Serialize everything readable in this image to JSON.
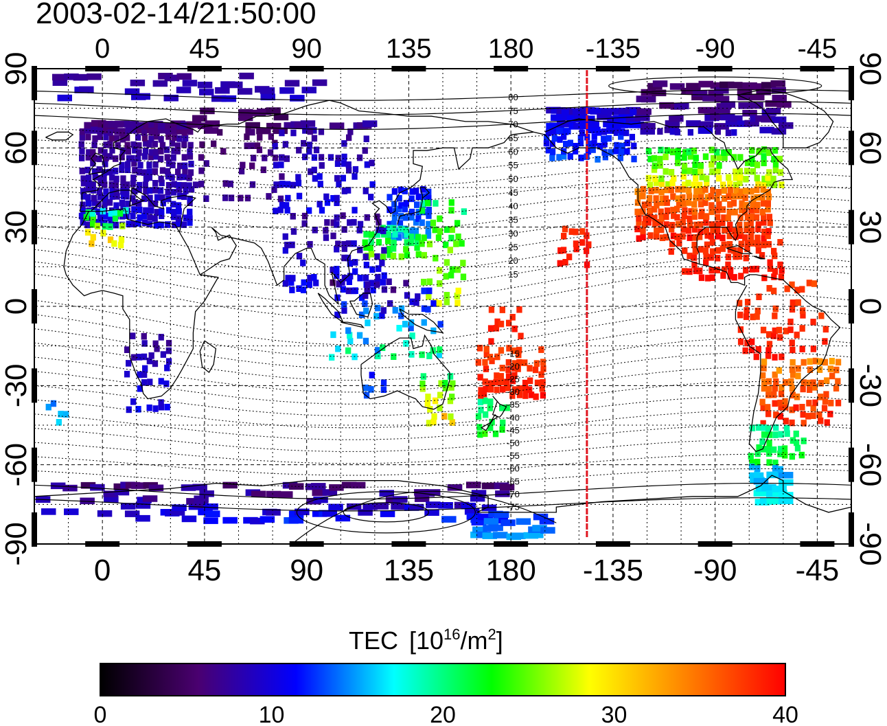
{
  "timestamp": "2003-02-14/21:50:00",
  "map": {
    "lon_range": [
      -30,
      330
    ],
    "lat_range": [
      -90,
      90
    ],
    "lon_tick_values": [
      0,
      45,
      90,
      135,
      180,
      225,
      270,
      315
    ],
    "lon_tick_labels": [
      "0",
      "45",
      "90",
      "135",
      "180",
      "-135",
      "-90",
      "-45"
    ],
    "lat_tick_values": [
      90,
      60,
      30,
      0,
      -30,
      -60,
      -90
    ],
    "lat_tick_labels": [
      "90",
      "60",
      "30",
      "0",
      "-30",
      "-60",
      "-90"
    ],
    "grid_lon_step": 15,
    "grid_lat_step": 15,
    "grid": true,
    "terminator_lon": 213.5,
    "terminator_color": "#e0141e",
    "contour_labels_north": [
      "80",
      "75",
      "70",
      "65",
      "60",
      "55",
      "50",
      "45",
      "40",
      "35",
      "30",
      "25",
      "20",
      "15"
    ],
    "contour_labels_south": [
      "-15",
      "-20",
      "-25",
      "-30",
      "-35",
      "-40",
      "-45",
      "-50",
      "-55",
      "-60",
      "-65",
      "-70",
      "-75"
    ]
  },
  "colorbar": {
    "title": "TEC",
    "unit_prefix": "[10",
    "unit_exp": "16",
    "unit_mid": "/m",
    "unit_exp2": "2",
    "unit_suffix": "]",
    "min": 0,
    "max": 40,
    "tick_values": [
      0,
      10,
      20,
      30,
      40
    ],
    "tick_labels": [
      "0",
      "10",
      "20",
      "30",
      "40"
    ],
    "colormap": [
      "#000000",
      "#4a0070",
      "#0000ff",
      "#00ffff",
      "#00ff00",
      "#ffff00",
      "#ff8000",
      "#ff0000"
    ]
  },
  "chart_data": {
    "type": "heatmap",
    "title": "2003-02-14/21:50:00",
    "value_label": "TEC [10^16/m^2]",
    "vmin": 0,
    "vmax": 40,
    "regions": [
      {
        "lon": [
          -10,
          40
        ],
        "lat": [
          30,
          70
        ],
        "v0": 5,
        "v1": 11,
        "density": 0.9
      },
      {
        "lon": [
          -8,
          10
        ],
        "lat": [
          22,
          35
        ],
        "v0": 16,
        "v1": 34,
        "density": 0.5
      },
      {
        "lon": [
          40,
          80
        ],
        "lat": [
          40,
          75
        ],
        "v0": 4,
        "v1": 8,
        "density": 0.25
      },
      {
        "lon": [
          75,
          120
        ],
        "lat": [
          35,
          70
        ],
        "v0": 6,
        "v1": 12,
        "density": 0.3
      },
      {
        "lon": [
          125,
          145
        ],
        "lat": [
          25,
          45
        ],
        "v0": 10,
        "v1": 15,
        "density": 0.85
      },
      {
        "lon": [
          115,
          140
        ],
        "lat": [
          18,
          30
        ],
        "v0": 16,
        "v1": 26,
        "density": 0.8
      },
      {
        "lon": [
          140,
          160
        ],
        "lat": [
          0,
          40
        ],
        "v0": 18,
        "v1": 30,
        "density": 0.35
      },
      {
        "lon": [
          80,
          125
        ],
        "lat": [
          5,
          35
        ],
        "v0": 6,
        "v1": 12,
        "density": 0.3
      },
      {
        "lon": [
          100,
          150
        ],
        "lat": [
          -20,
          10
        ],
        "v0": 4,
        "v1": 22,
        "density": 0.3
      },
      {
        "lon": [
          10,
          30
        ],
        "lat": [
          -40,
          -10
        ],
        "v0": 6,
        "v1": 12,
        "density": 0.35
      },
      {
        "lon": [
          -25,
          -15
        ],
        "lat": [
          -45,
          -35
        ],
        "v0": 13,
        "v1": 17,
        "density": 0.4
      },
      {
        "lon": [
          115,
          125
        ],
        "lat": [
          -35,
          -25
        ],
        "v0": 10,
        "v1": 15,
        "density": 0.6
      },
      {
        "lon": [
          140,
          155
        ],
        "lat": [
          -45,
          -25
        ],
        "v0": 18,
        "v1": 34,
        "density": 0.55
      },
      {
        "lon": [
          165,
          180
        ],
        "lat": [
          -50,
          -35
        ],
        "v0": 18,
        "v1": 24,
        "density": 0.55
      },
      {
        "lon": [
          165,
          195
        ],
        "lat": [
          -35,
          -15
        ],
        "v0": 36,
        "v1": 40,
        "density": 0.55
      },
      {
        "lon": [
          170,
          185
        ],
        "lat": [
          -15,
          0
        ],
        "v0": 37,
        "v1": 40,
        "density": 0.4
      },
      {
        "lon": [
          200,
          215
        ],
        "lat": [
          15,
          30
        ],
        "v0": 37,
        "v1": 40,
        "density": 0.45
      },
      {
        "lon": [
          195,
          235
        ],
        "lat": [
          55,
          75
        ],
        "v0": 8,
        "v1": 14,
        "density": 0.75
      },
      {
        "lon": [
          235,
          300
        ],
        "lat": [
          65,
          85
        ],
        "v0": 3,
        "v1": 10,
        "density": 0.35
      },
      {
        "lon": [
          240,
          300
        ],
        "lat": [
          45,
          60
        ],
        "v0": 20,
        "v1": 30,
        "density": 0.75
      },
      {
        "lon": [
          235,
          295
        ],
        "lat": [
          25,
          45
        ],
        "v0": 33,
        "v1": 40,
        "density": 0.92
      },
      {
        "lon": [
          250,
          300
        ],
        "lat": [
          10,
          25
        ],
        "v0": 37,
        "v1": 40,
        "density": 0.55
      },
      {
        "lon": [
          280,
          320
        ],
        "lat": [
          -20,
          10
        ],
        "v0": 36,
        "v1": 40,
        "density": 0.3
      },
      {
        "lon": [
          290,
          325
        ],
        "lat": [
          -45,
          -20
        ],
        "v0": 32,
        "v1": 40,
        "density": 0.6
      },
      {
        "lon": [
          285,
          310
        ],
        "lat": [
          -60,
          -45
        ],
        "v0": 18,
        "v1": 24,
        "density": 0.5
      },
      {
        "lon": [
          285,
          300
        ],
        "lat": [
          -75,
          -62
        ],
        "v0": 14,
        "v1": 18,
        "density": 0.55
      },
      {
        "lon": [
          -30,
          180
        ],
        "lat": [
          -82,
          -68
        ],
        "v0": 4,
        "v1": 13,
        "density": 0.22
      },
      {
        "lon": [
          160,
          195
        ],
        "lat": [
          -88,
          -78
        ],
        "v0": 10,
        "v1": 16,
        "density": 0.35
      },
      {
        "lon": [
          -25,
          100
        ],
        "lat": [
          78,
          88
        ],
        "v0": 6,
        "v1": 10,
        "density": 0.15
      }
    ]
  }
}
